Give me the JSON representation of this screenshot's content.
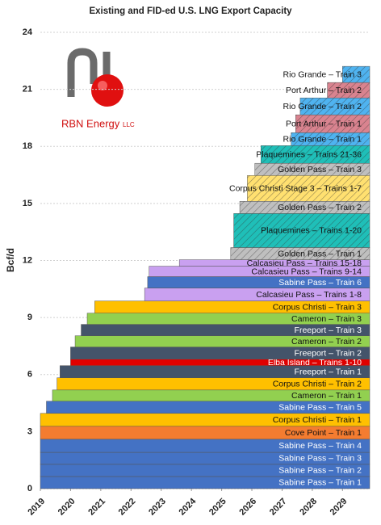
{
  "chart_data": {
    "type": "stacked-step-bands",
    "title": "Existing and FID-ed U.S. LNG Export Capacity",
    "y_label": "Bcf/d",
    "logo": {
      "text": "RBN Energy",
      "suffix": "LLC"
    },
    "xlim": [
      2019,
      2029.9
    ],
    "xticks": [
      2019,
      2020,
      2021,
      2022,
      2023,
      2024,
      2025,
      2026,
      2027,
      2028,
      2029
    ],
    "ylim": [
      0,
      24
    ],
    "yticks": [
      0,
      3,
      6,
      9,
      12,
      15,
      18,
      21,
      24
    ],
    "grid": true,
    "series": [
      {
        "name": "Sabine Pass – Train 1",
        "color": "#4472c4",
        "start": 2019,
        "value": 0.64
      },
      {
        "name": "Sabine Pass – Train 2",
        "color": "#4472c4",
        "start": 2019,
        "value": 0.64
      },
      {
        "name": "Sabine Pass – Train 3",
        "color": "#4472c4",
        "start": 2019,
        "value": 0.63
      },
      {
        "name": "Sabine Pass – Train 4",
        "color": "#4472c4",
        "start": 2019,
        "value": 0.69
      },
      {
        "name": "Cove Point – Train 1",
        "color": "#f47c30",
        "start": 2019,
        "value": 0.68
      },
      {
        "name": "Corpus Christi – Train 1",
        "color": "#ffc000",
        "start": 2019,
        "value": 0.68
      },
      {
        "name": "Sabine Pass – Train 5",
        "color": "#4472c4",
        "start": 2019.2,
        "value": 0.64
      },
      {
        "name": "Cameron – Train 1",
        "color": "#92d050",
        "start": 2019.4,
        "value": 0.59
      },
      {
        "name": "Corpus Christi – Train 2",
        "color": "#ffc000",
        "start": 2019.55,
        "value": 0.64
      },
      {
        "name": "Freeport – Train 1",
        "color": "#44546a",
        "start": 2019.65,
        "value": 0.64
      },
      {
        "name": "Elba Island – Trains 1-10",
        "color": "#e00000",
        "start": 2020.0,
        "value": 0.34
      },
      {
        "name": "Freeport – Train 2",
        "color": "#44546a",
        "start": 2020.0,
        "value": 0.64
      },
      {
        "name": "Cameron – Train 2",
        "color": "#92d050",
        "start": 2020.15,
        "value": 0.59
      },
      {
        "name": "Freeport – Train 3",
        "color": "#44546a",
        "start": 2020.35,
        "value": 0.6
      },
      {
        "name": "Cameron – Train 3",
        "color": "#92d050",
        "start": 2020.55,
        "value": 0.59
      },
      {
        "name": "Corpus Christi – Train 3",
        "color": "#ffc000",
        "start": 2020.8,
        "value": 0.64
      },
      {
        "name": "Calcasieu Pass – Trains 1-8",
        "color": "#c9a0f0",
        "start": 2022.45,
        "value": 0.68
      },
      {
        "name": "Sabine Pass – Train 6",
        "color": "#4472c4",
        "start": 2022.55,
        "value": 0.6
      },
      {
        "name": "Calcasieu Pass – Trains 9-14",
        "color": "#c9a0f0",
        "start": 2022.6,
        "value": 0.55
      },
      {
        "name": "Calcasieu Pass – Trains 15-18",
        "color": "#c9a0f0",
        "start": 2023.6,
        "value": 0.34
      },
      {
        "name": "Golden Pass – Train 1",
        "color": "#bfbfbf",
        "start": 2025.3,
        "value": 0.64,
        "hatch": true
      },
      {
        "name": "Plaquemines – Trains 1-20",
        "color": "#1fbfb8",
        "start": 2025.4,
        "value": 1.79,
        "hatch": true
      },
      {
        "name": "Golden Pass – Train 2",
        "color": "#bfbfbf",
        "start": 2025.6,
        "value": 0.64,
        "hatch": true
      },
      {
        "name": "Corpus Christi Stage 3 – Trains 1-7",
        "color": "#ffe070",
        "start": 2025.85,
        "value": 1.36,
        "hatch": true
      },
      {
        "name": "Golden Pass – Train 3",
        "color": "#bfbfbf",
        "start": 2026.1,
        "value": 0.64,
        "hatch": true
      },
      {
        "name": "Plaquemines – Trains 21-36",
        "color": "#1fbfb8",
        "start": 2026.3,
        "value": 0.93,
        "hatch": true
      },
      {
        "name": "Rio Grande – Train 1",
        "color": "#4fb3f0",
        "start": 2027.3,
        "value": 0.68,
        "hatch": true
      },
      {
        "name": "Port Arthur – Train 1",
        "color": "#d9838f",
        "start": 2027.45,
        "value": 0.94,
        "hatch": true
      },
      {
        "name": "Rio Grande – Train 2",
        "color": "#4fb3f0",
        "start": 2027.6,
        "value": 0.89,
        "hatch": true
      },
      {
        "name": "Port Arthur – Train 2",
        "color": "#d9838f",
        "start": 2028.5,
        "value": 0.81,
        "hatch": true
      },
      {
        "name": "Rio Grande – Train 3",
        "color": "#4fb3f0",
        "start": 2029.0,
        "value": 0.85,
        "hatch": true
      }
    ]
  }
}
